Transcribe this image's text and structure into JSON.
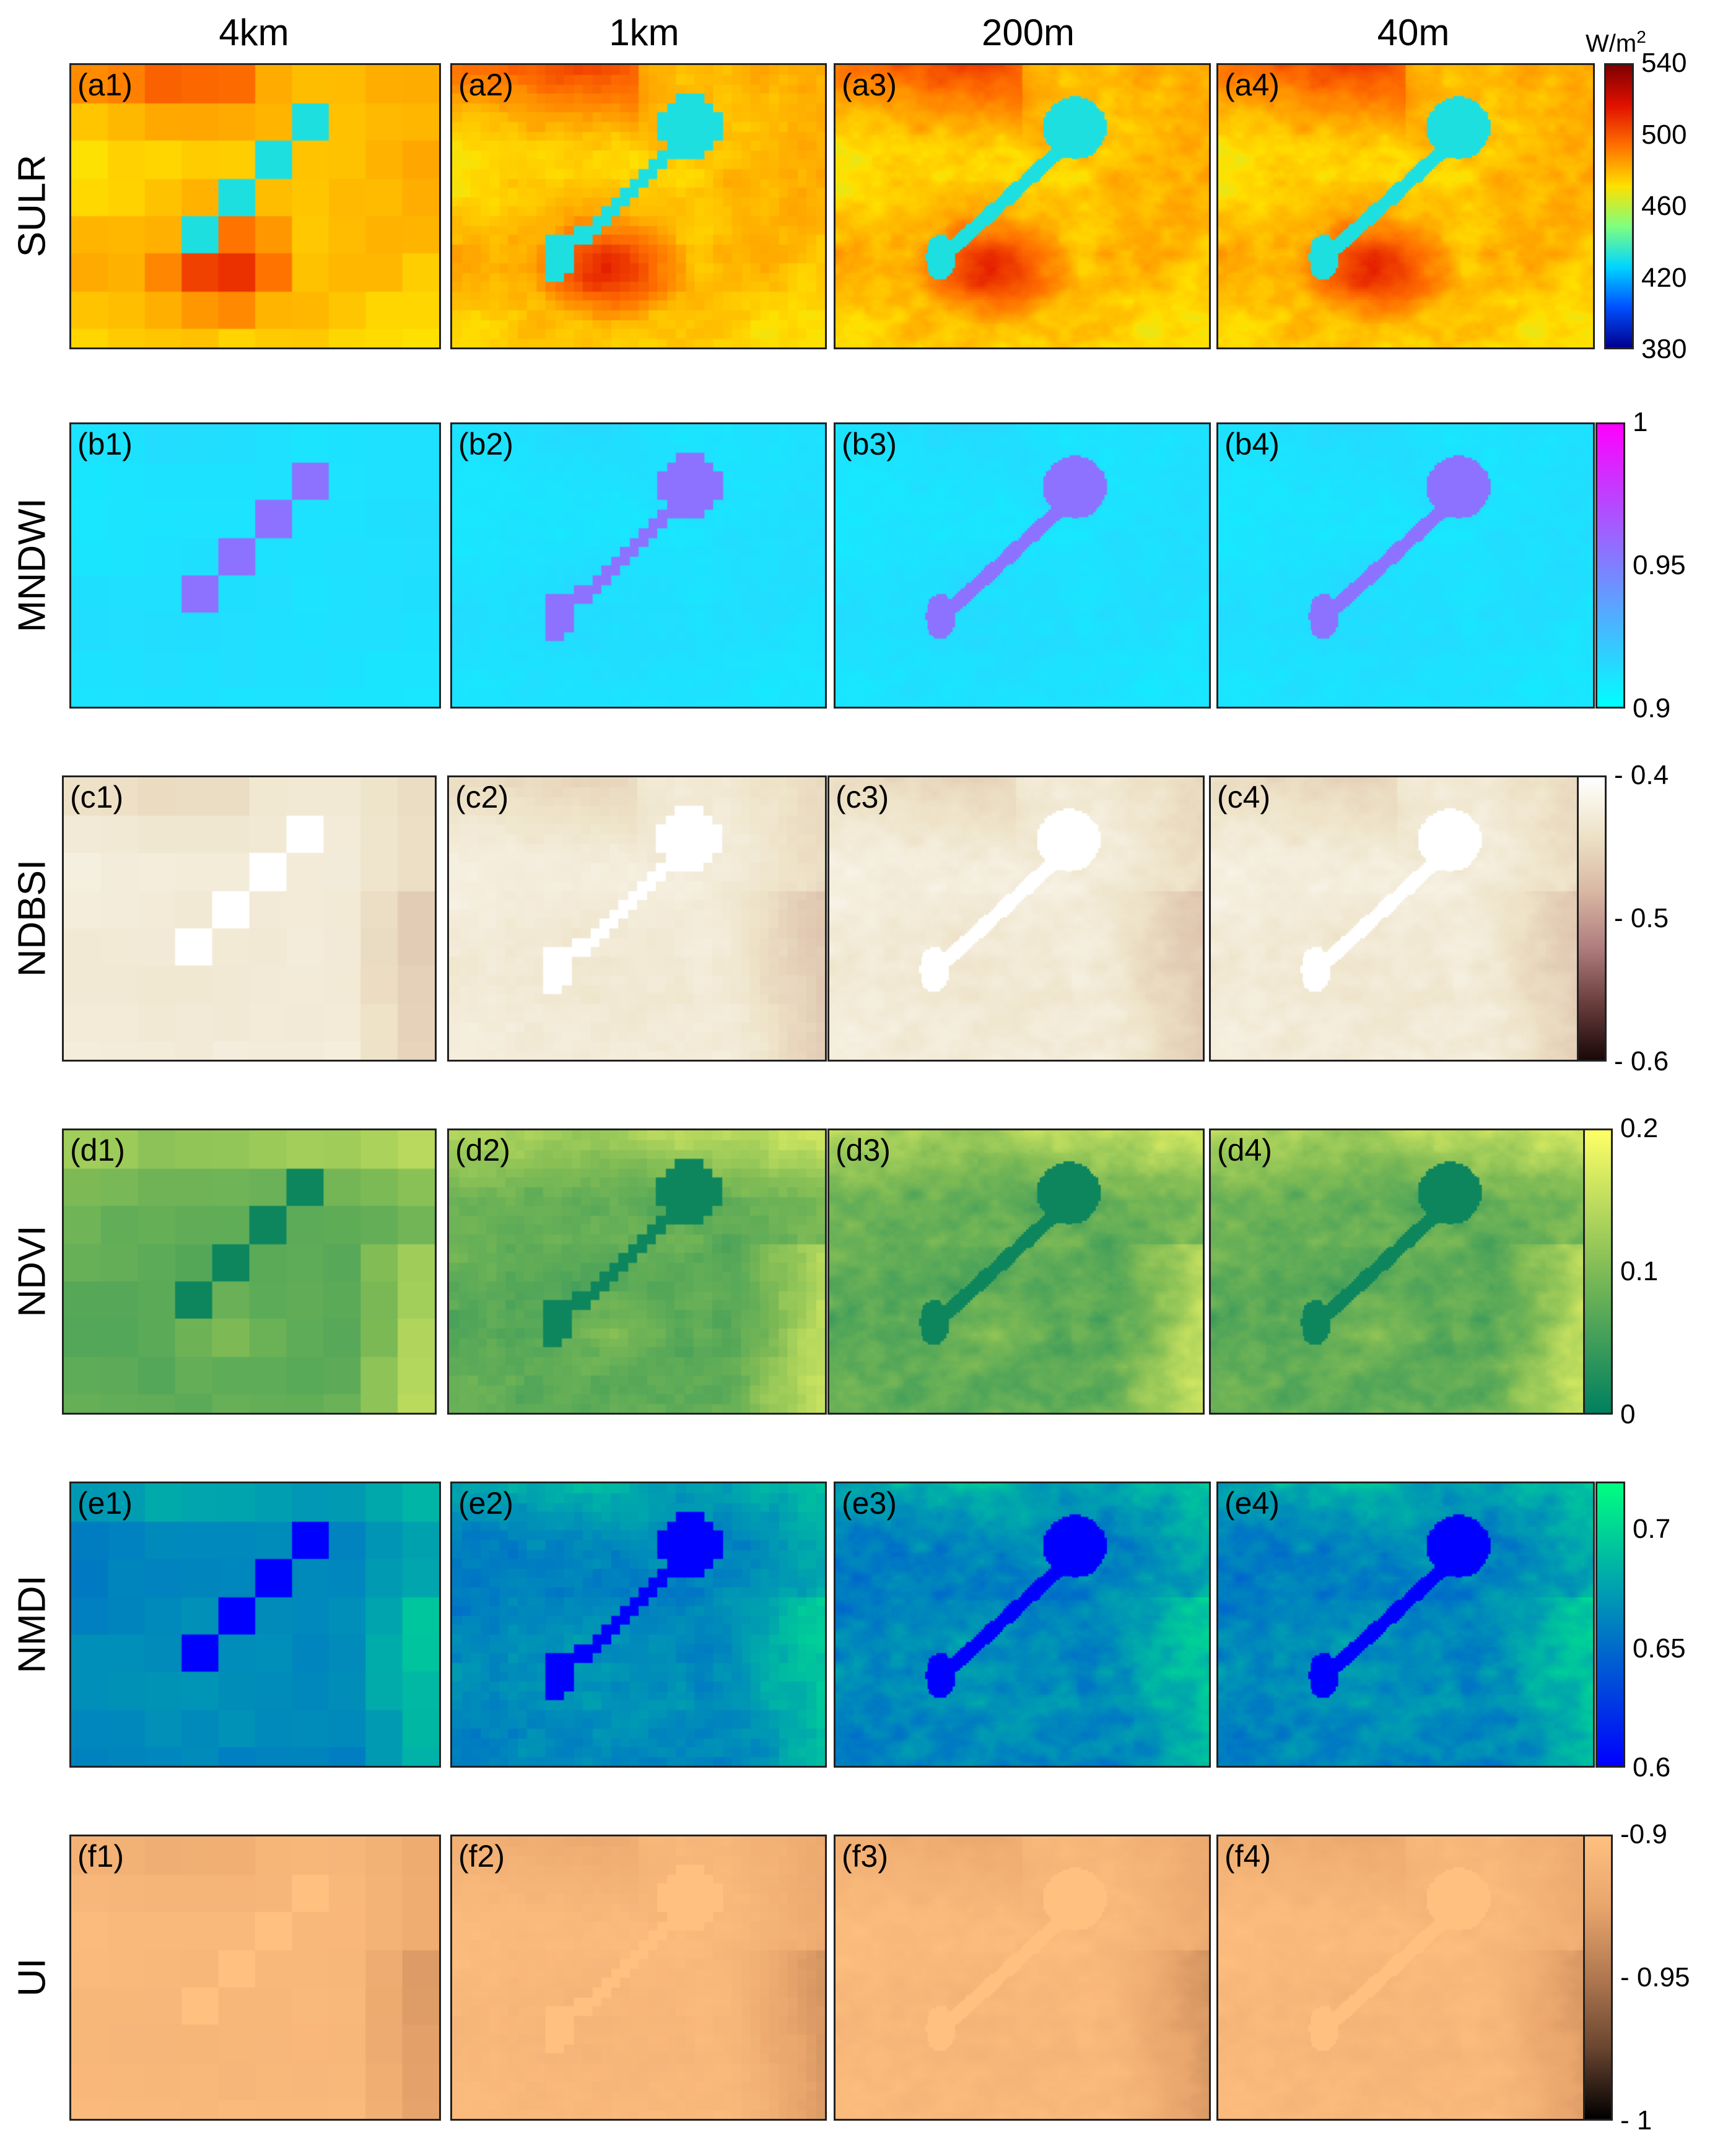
{
  "column_headers": [
    "4km",
    "1km",
    "200m",
    "40m"
  ],
  "rows": [
    {
      "id": "a",
      "label": "SULR",
      "panels": [
        "(a1)",
        "(a2)",
        "(a3)",
        "(a4)"
      ],
      "colormap": [
        "#00008f",
        "#0050ff",
        "#00d5ff",
        "#7fff7f",
        "#ffe000",
        "#ff7000",
        "#e01000",
        "#7f0000"
      ],
      "tick_labels": [
        "540",
        "500",
        "460",
        "420",
        "380"
      ],
      "tick_values": [
        540,
        500,
        460,
        420,
        380
      ],
      "range": [
        380,
        540
      ],
      "unit": "W/m",
      "unit_sup": "2",
      "style": "sulr"
    },
    {
      "id": "b",
      "label": "MNDWI",
      "panels": [
        "(b1)",
        "(b2)",
        "(b3)",
        "(b4)"
      ],
      "colormap": [
        "#00ffff",
        "#3fbfff",
        "#7f7fff",
        "#bf3fff",
        "#ff00ff"
      ],
      "tick_labels": [
        "1",
        "0.95",
        "0.9"
      ],
      "tick_values": [
        1,
        0.95,
        0.9
      ],
      "range": [
        0.9,
        1
      ],
      "style": "mndwi"
    },
    {
      "id": "c",
      "label": "NDBSI",
      "panels": [
        "(c1)",
        "(c2)",
        "(c3)",
        "(c4)"
      ],
      "colormap": [
        "#ffffff",
        "#eee3c8",
        "#d9b8a4",
        "#b07e7e",
        "#6a3d3d",
        "#1a0808"
      ],
      "tick_labels": [
        "- 0.4",
        "- 0.5",
        "- 0.6"
      ],
      "tick_values": [
        -0.4,
        -0.5,
        -0.6
      ],
      "range": [
        -0.6,
        -0.4
      ],
      "style": "ndbsi"
    },
    {
      "id": "d",
      "label": "NDVI",
      "panels": [
        "(d1)",
        "(d2)",
        "(d3)",
        "(d4)"
      ],
      "colormap": [
        "#ffff66",
        "#bfdd5e",
        "#7fbb55",
        "#3f9d5a",
        "#00805f"
      ],
      "tick_labels": [
        "0.2",
        "0.1",
        "0"
      ],
      "tick_values": [
        0.2,
        0.1,
        0
      ],
      "range": [
        0,
        0.2
      ],
      "style": "ndvi"
    },
    {
      "id": "e",
      "label": "NMDI",
      "panels": [
        "(e1)",
        "(e2)",
        "(e3)",
        "(e4)"
      ],
      "colormap": [
        "#00ff80",
        "#00bfa0",
        "#0080c0",
        "#0040e0",
        "#0000ff"
      ],
      "tick_labels": [
        "0.7",
        "0.65",
        "0.6"
      ],
      "tick_values": [
        0.7,
        0.65,
        0.6
      ],
      "range": [
        0.6,
        0.72
      ],
      "style": "nmdi"
    },
    {
      "id": "f",
      "label": "UI",
      "panels": [
        "(f1)",
        "(f2)",
        "(f3)",
        "(f4)"
      ],
      "colormap": [
        "#ffc080",
        "#e8a56c",
        "#b07850",
        "#6a4530",
        "#000000"
      ],
      "tick_labels": [
        "-0.9",
        "- 0.95",
        "- 1"
      ],
      "tick_values": [
        -0.9,
        -0.95,
        -1
      ],
      "range": [
        -1,
        -0.9
      ],
      "style": "ui"
    }
  ]
}
